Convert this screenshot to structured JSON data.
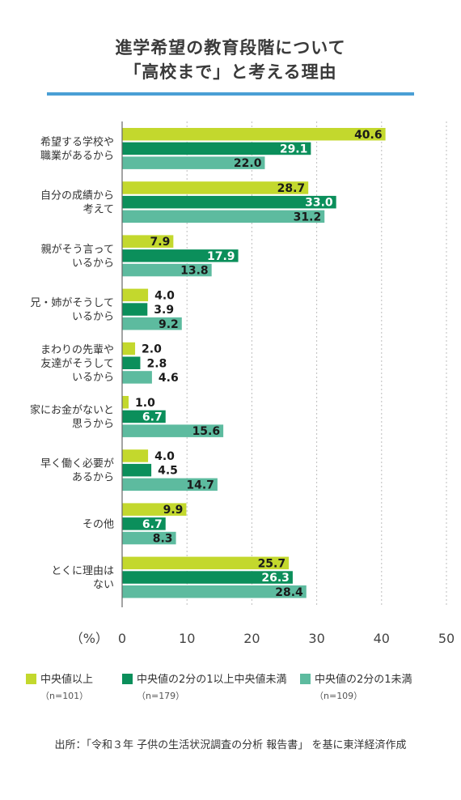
{
  "title": {
    "line1": "進学希望の教育段階について",
    "line2": "「高校まで」と考える理由"
  },
  "chart_data": {
    "type": "bar",
    "orientation": "horizontal",
    "categories": [
      [
        "希望する学校や",
        "職業があるから"
      ],
      [
        "自分の成績から",
        "考えて"
      ],
      [
        "親がそう言って",
        "いるから"
      ],
      [
        "兄・姉がそうして",
        "いるから"
      ],
      [
        "まわりの先輩や",
        "友達がそうして",
        "いるから"
      ],
      [
        "家にお金がないと",
        "思うから"
      ],
      [
        "早く働く必要が",
        "あるから"
      ],
      [
        "その他"
      ],
      [
        "とくに理由は",
        "ない"
      ]
    ],
    "series": [
      {
        "name": "中央値以上",
        "n": "（n=101）",
        "color": "#c3d82d",
        "values": [
          40.6,
          28.7,
          7.9,
          4.0,
          2.0,
          1.0,
          4.0,
          9.9,
          25.7
        ]
      },
      {
        "name": "中央値の2分の1以上中央値未満",
        "n": "（n=179）",
        "color": "#0b8f5b",
        "values": [
          29.1,
          33.0,
          17.9,
          3.9,
          2.8,
          6.7,
          4.5,
          6.7,
          26.3
        ]
      },
      {
        "name": "中央値の2分の1未満",
        "n": "（n=109）",
        "color": "#5dbb9f",
        "values": [
          22.0,
          31.2,
          13.8,
          9.2,
          4.6,
          15.6,
          14.7,
          8.3,
          28.4
        ]
      }
    ],
    "xlim": [
      0,
      50
    ],
    "xticks": [
      0,
      10,
      20,
      30,
      40,
      50
    ],
    "xlabel": "（%）",
    "grid": true
  },
  "source": "出所：「令和３年 子供の生活状況調査の分析 報告書」 を基に東洋経済作成"
}
